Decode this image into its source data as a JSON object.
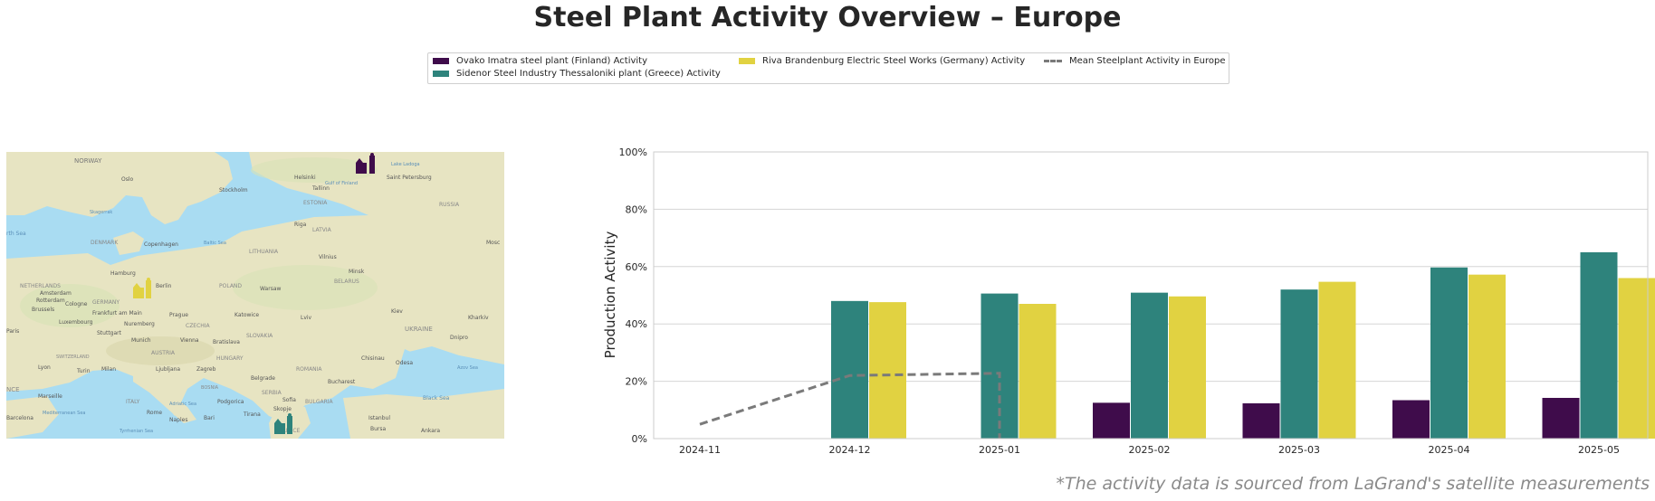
{
  "title": "Steel Plant Activity Overview – Europe",
  "legend": {
    "items": [
      {
        "label": "Ovako Imatra steel plant (Finland) Activity",
        "color": "#3f0c4b"
      },
      {
        "label": "Sidenor Steel Industry Thessaloniki plant (Greece) Activity",
        "color": "#2e837c"
      },
      {
        "label": "Riva Brandenburg Electric Steel Works (Germany) Activity",
        "color": "#e1d241"
      },
      {
        "label": "Mean Steelplant Activity in Europe",
        "color": "#7a7a7a"
      }
    ]
  },
  "map": {
    "labels": {
      "norway": "NORWAY",
      "oslo": "Oslo",
      "stockholm": "Stockholm",
      "helsinki": "Helsinki",
      "tallinn": "Tallinn",
      "estonia": "ESTONIA",
      "saint_petersburg": "Saint Petersburg",
      "riga": "Riga",
      "latvia": "LATVIA",
      "skagerrak": "Skagerrak",
      "denmark": "DENMARK",
      "copenhagen": "Copenhagen",
      "baltic_sea": "Baltic Sea",
      "vilnius": "Vilnius",
      "minsk": "Minsk",
      "belarus": "BELARUS",
      "north_sea": "rth Sea",
      "netherlands": "NETHERLANDS",
      "hamburg": "Hamburg",
      "berlin": "Berlin",
      "poland": "POLAND",
      "warsaw": "Warsaw",
      "moscow": "Mosc",
      "germany": "GERMANY",
      "prague": "Prague",
      "katowice": "Katowice",
      "lviv": "Lviv",
      "kyiv": "Kiev",
      "kharkiv": "Kharkiv",
      "ukraine": "UKRAINE",
      "dnipro": "Dnipro",
      "paris": "Paris",
      "munich": "Munich",
      "vienna": "Vienna",
      "bratislava": "Bratislava",
      "slovakia": "SLOVAKIA",
      "austria": "AUSTRIA",
      "hungary": "HUNGARY",
      "chisinau": "Chisinau",
      "odesa": "Odesa",
      "lyon": "Lyon",
      "milan": "Milan",
      "zagreb": "Zagreb",
      "belgrade": "Belgrade",
      "romania": "ROMANIA",
      "bucharest": "Bucharest",
      "black_sea": "Black Sea",
      "azov_sea": "Azov Sea",
      "marseille": "Marseille",
      "italy": "ITALY",
      "rome": "Rome",
      "serbia": "SERBIA",
      "bulgaria": "BULGARIA",
      "sofia": "Sofia",
      "skopje": "Skopje",
      "naples": "Naples",
      "bari": "Bari",
      "tirana": "Tirana",
      "istanbul": "Istanbul",
      "bursa": "Bursa",
      "ankara": "Ankara",
      "barcelona": "Barcelona",
      "tyrrhenian_sea": "Tyrrhenian Sea",
      "mediterranean_sea": "Mediterranean Sea",
      "france": "NCE",
      "adriatic_sea": "Adriatic Sea",
      "podgorica": "Podgorica",
      "amsterdam": "Amsterdam",
      "brussels": "Brussels",
      "luxembourg": "Luxembourg",
      "frankfurt": "Frankfurt am Main",
      "nuremberg": "Nuremberg",
      "stuttgart": "Stuttgart",
      "cologne": "Cologne",
      "rotterdam": "Rotterdam",
      "turin": "Turin",
      "ljubljana": "Ljubljana",
      "switzerland": "SWITZERLAND",
      "gulf_of_finland": "Gulf of Finland",
      "lake_ladoga": "Lake Ladoga",
      "lithuania": "LITHUANIA",
      "russia": "RUSSIA",
      "czechia": "CZECHIA",
      "bosnia": "BOSNIA",
      "greece": "GREECE"
    }
  },
  "chart_data": {
    "type": "bar",
    "categories": [
      "2024-11",
      "2024-12",
      "2025-01",
      "2025-02",
      "2025-03",
      "2025-04",
      "2025-05"
    ],
    "series": [
      {
        "name": "Ovako Imatra steel plant (Finland) Activity",
        "values": [
          null,
          null,
          null,
          12.5,
          12.3,
          13.4,
          14.2
        ]
      },
      {
        "name": "Sidenor Steel Industry Thessaloniki plant (Greece) Activity",
        "values": [
          null,
          48.0,
          50.6,
          50.9,
          52.0,
          59.7,
          65.0
        ]
      },
      {
        "name": "Riva Brandenburg Electric Steel Works (Germany) Activity",
        "values": [
          null,
          47.6,
          47.0,
          49.6,
          54.7,
          57.2,
          56.0
        ]
      }
    ],
    "line_series": {
      "name": "Mean Steelplant Activity in Europe",
      "values": [
        5.0,
        22.0,
        22.8
      ],
      "x_end": "2025-01",
      "drop_to": 0
    },
    "ylabel": "Production Activity",
    "xlabel": "",
    "ylim": [
      0,
      100
    ],
    "yticks": [
      "0%",
      "20%",
      "40%",
      "60%",
      "80%",
      "100%"
    ],
    "grid": "horizontal",
    "legend": "top-center"
  },
  "footer": "*The activity data is sourced from LaGrand's satellite measurements"
}
